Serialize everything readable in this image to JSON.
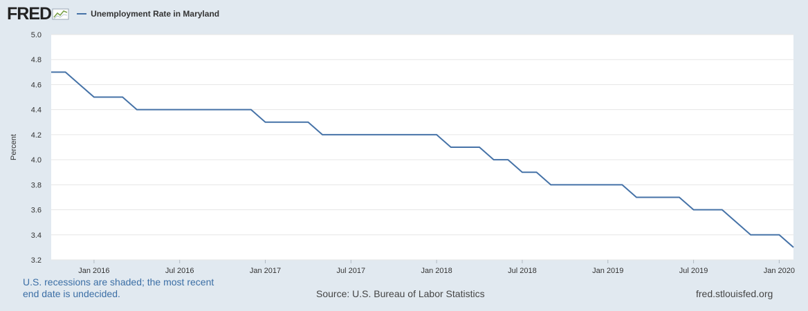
{
  "brand": {
    "logo_text": "FRED"
  },
  "colors": {
    "line": "#4572a7",
    "background": "#e1e9f0",
    "plot_bg": "#ffffff",
    "grid": "#e6e6e6"
  },
  "chart_data": {
    "type": "line",
    "series": [
      {
        "name": "Unemployment Rate in Maryland",
        "x": [
          "2015-10",
          "2015-11",
          "2015-12",
          "2016-01",
          "2016-02",
          "2016-03",
          "2016-04",
          "2016-05",
          "2016-06",
          "2016-07",
          "2016-08",
          "2016-09",
          "2016-10",
          "2016-11",
          "2016-12",
          "2017-01",
          "2017-02",
          "2017-03",
          "2017-04",
          "2017-05",
          "2017-06",
          "2017-07",
          "2017-08",
          "2017-09",
          "2017-10",
          "2017-11",
          "2017-12",
          "2018-01",
          "2018-02",
          "2018-03",
          "2018-04",
          "2018-05",
          "2018-06",
          "2018-07",
          "2018-08",
          "2018-09",
          "2018-10",
          "2018-11",
          "2018-12",
          "2019-01",
          "2019-02",
          "2019-03",
          "2019-04",
          "2019-05",
          "2019-06",
          "2019-07",
          "2019-08",
          "2019-09",
          "2019-10",
          "2019-11",
          "2019-12",
          "2020-01",
          "2020-02"
        ],
        "values": [
          4.7,
          4.7,
          4.6,
          4.5,
          4.5,
          4.5,
          4.4,
          4.4,
          4.4,
          4.4,
          4.4,
          4.4,
          4.4,
          4.4,
          4.4,
          4.3,
          4.3,
          4.3,
          4.3,
          4.2,
          4.2,
          4.2,
          4.2,
          4.2,
          4.2,
          4.2,
          4.2,
          4.2,
          4.1,
          4.1,
          4.1,
          4.0,
          4.0,
          3.9,
          3.9,
          3.8,
          3.8,
          3.8,
          3.8,
          3.8,
          3.8,
          3.7,
          3.7,
          3.7,
          3.7,
          3.6,
          3.6,
          3.6,
          3.5,
          3.4,
          3.4,
          3.4,
          3.3
        ]
      }
    ],
    "ylabel": "Percent",
    "ylim": [
      3.2,
      5.0
    ],
    "yticks": [
      "3.2",
      "3.4",
      "3.6",
      "3.8",
      "4.0",
      "4.2",
      "4.4",
      "4.6",
      "4.8",
      "5.0"
    ],
    "xticks": [
      {
        "date": "2016-01",
        "label": "Jan 2016"
      },
      {
        "date": "2016-07",
        "label": "Jul 2016"
      },
      {
        "date": "2017-01",
        "label": "Jan 2017"
      },
      {
        "date": "2017-07",
        "label": "Jul 2017"
      },
      {
        "date": "2018-01",
        "label": "Jan 2018"
      },
      {
        "date": "2018-07",
        "label": "Jul 2018"
      },
      {
        "date": "2019-01",
        "label": "Jan 2019"
      },
      {
        "date": "2019-07",
        "label": "Jul 2019"
      },
      {
        "date": "2020-01",
        "label": "Jan 2020"
      }
    ],
    "grid": true,
    "legend": "top-left"
  },
  "footer": {
    "note": "U.S. recessions are shaded; the most recent end date is undecided.",
    "source": "Source: U.S. Bureau of Labor Statistics",
    "url": "fred.stlouisfed.org"
  }
}
